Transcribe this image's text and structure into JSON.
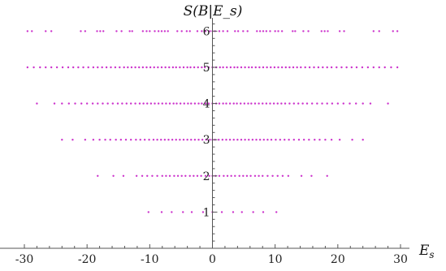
{
  "chart_data": {
    "type": "scatter",
    "title": "",
    "xlabel": "E_s",
    "ylabel": "S(B|E_s)",
    "xlim": [
      -30,
      30
    ],
    "ylim": [
      0,
      6
    ],
    "x_ticks": [
      -30,
      -20,
      -10,
      0,
      10,
      20,
      30
    ],
    "x_tick_labels": [
      "-30",
      "-20",
      "-10",
      "0",
      "10",
      "20",
      "30"
    ],
    "y_ticks": [
      1,
      2,
      3,
      4,
      5,
      6
    ],
    "y_tick_labels": [
      "1",
      "2",
      "3",
      "4",
      "5",
      "6"
    ],
    "color": "#cc33cc",
    "grid": false,
    "series": [
      {
        "y": 1,
        "x": [
          -10.2,
          -8.1,
          -6.5,
          -4.7,
          -3.3,
          -1.5,
          0,
          1.5,
          3.3,
          4.7,
          6.5,
          8.1,
          10.2
        ]
      },
      {
        "y": 2,
        "x": [
          -18.3,
          -15.8,
          -14.2,
          -12.1,
          -11.2,
          -10.4,
          -9.6,
          -8.8,
          -8.0,
          -7.4,
          -6.8,
          -6.1,
          -5.5,
          -4.9,
          -4.3,
          -3.6,
          -3.0,
          -2.4,
          -1.8,
          -1.1,
          -0.5,
          0,
          0.5,
          1.1,
          1.8,
          2.4,
          3.0,
          3.6,
          4.3,
          4.9,
          5.5,
          6.1,
          6.8,
          7.4,
          8.0,
          8.8,
          9.6,
          10.4,
          11.2,
          12.1,
          14.2,
          15.8,
          18.3
        ]
      },
      {
        "y": 3,
        "x": [
          -24.0,
          -22.3,
          -20.3,
          -19.0,
          -18.0,
          -17.1,
          -16.3,
          -15.4,
          -14.6,
          -13.8,
          -13.0,
          -12.2,
          -11.5,
          -10.8,
          -10.1,
          -9.4,
          -8.8,
          -8.2,
          -7.6,
          -7.0,
          -6.4,
          -5.8,
          -5.2,
          -4.6,
          -4.0,
          -3.4,
          -2.8,
          -2.2,
          -1.6,
          -1.0,
          -0.4,
          0,
          0.4,
          1.0,
          1.6,
          2.2,
          2.8,
          3.4,
          4.0,
          4.6,
          5.2,
          5.8,
          6.4,
          7.0,
          7.6,
          8.2,
          8.8,
          9.4,
          10.1,
          10.8,
          11.5,
          12.2,
          13.0,
          13.8,
          14.6,
          15.4,
          16.3,
          17.1,
          18.0,
          19.0,
          20.3,
          22.3,
          24.0
        ]
      },
      {
        "y": 4,
        "x": [
          -28.0,
          -25.2,
          -24.0,
          -22.9,
          -21.9,
          -20.9,
          -20.0,
          -19.1,
          -18.3,
          -17.5,
          -16.7,
          -15.9,
          -15.1,
          -14.4,
          -13.7,
          -13.0,
          -12.3,
          -11.6,
          -11.0,
          -10.4,
          -9.8,
          -9.2,
          -8.6,
          -8.0,
          -7.4,
          -6.8,
          -6.2,
          -5.7,
          -5.1,
          -4.5,
          -3.9,
          -3.4,
          -2.8,
          -2.2,
          -1.7,
          -1.1,
          -0.6,
          0,
          0.6,
          1.1,
          1.7,
          2.2,
          2.8,
          3.4,
          3.9,
          4.5,
          5.1,
          5.7,
          6.2,
          6.8,
          7.4,
          8.0,
          8.6,
          9.2,
          9.8,
          10.4,
          11.0,
          11.6,
          12.3,
          13.0,
          13.7,
          14.4,
          15.1,
          15.9,
          16.7,
          17.5,
          18.3,
          19.1,
          20.0,
          20.9,
          21.9,
          22.9,
          24.0,
          25.2,
          28.0
        ]
      },
      {
        "y": 5,
        "x": [
          -29.5,
          -28.5,
          -27.5,
          -26.6,
          -25.7,
          -24.8,
          -23.9,
          -23.0,
          -22.2,
          -21.4,
          -20.6,
          -19.8,
          -19.0,
          -18.3,
          -17.6,
          -16.9,
          -16.2,
          -15.5,
          -14.8,
          -14.1,
          -13.5,
          -12.9,
          -12.3,
          -11.7,
          -11.1,
          -10.5,
          -9.9,
          -9.3,
          -8.7,
          -8.1,
          -7.5,
          -6.9,
          -6.3,
          -5.8,
          -5.2,
          -4.6,
          -4.0,
          -3.5,
          -2.9,
          -2.3,
          -1.7,
          -1.2,
          -0.6,
          0,
          0.6,
          1.2,
          1.7,
          2.3,
          2.9,
          3.5,
          4.0,
          4.6,
          5.2,
          5.8,
          6.3,
          6.9,
          7.5,
          8.1,
          8.7,
          9.3,
          9.9,
          10.5,
          11.1,
          11.7,
          12.3,
          12.9,
          13.5,
          14.1,
          14.8,
          15.5,
          16.2,
          16.9,
          17.6,
          18.3,
          19.0,
          19.8,
          20.6,
          21.4,
          22.2,
          23.0,
          23.9,
          24.8,
          25.7,
          26.6,
          27.5,
          28.5,
          29.5
        ]
      },
      {
        "y": 6,
        "x": [
          -29.5,
          -28.8,
          -26.6,
          -25.7,
          -21.0,
          -20.3,
          -18.4,
          -17.9,
          -17.4,
          -15.3,
          -14.5,
          -13.2,
          -12.8,
          -11.1,
          -10.5,
          -10.0,
          -9.2,
          -8.6,
          -8.1,
          -7.6,
          -7.1,
          -5.6,
          -4.9,
          -4.1,
          -3.6,
          -2.4,
          -1.7,
          -1.1,
          -0.4,
          0,
          0.4,
          1.1,
          1.7,
          2.4,
          3.6,
          4.1,
          4.9,
          5.6,
          7.1,
          7.6,
          8.1,
          8.6,
          9.2,
          10.0,
          10.5,
          11.1,
          12.8,
          13.2,
          14.5,
          15.3,
          17.4,
          17.9,
          18.4,
          20.3,
          21.0,
          25.7,
          26.6,
          28.8,
          29.5
        ]
      }
    ]
  }
}
